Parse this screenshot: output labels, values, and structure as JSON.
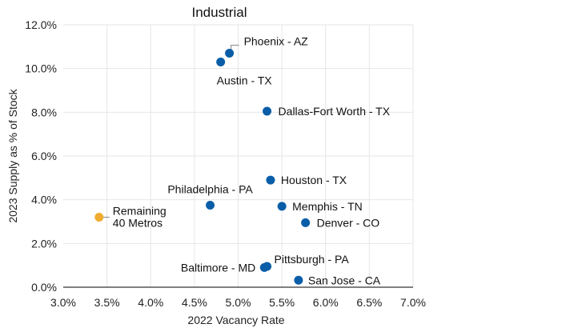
{
  "chart_data": {
    "type": "scatter",
    "title": "Industrial",
    "xlabel": "2022 Vacancy Rate",
    "ylabel": "2023 Supply as % of Stock",
    "xlim": [
      3.0,
      7.0
    ],
    "ylim": [
      0.0,
      12.0
    ],
    "x_ticks": [
      "3.0%",
      "3.5%",
      "4.0%",
      "4.5%",
      "5.0%",
      "5.5%",
      "6.0%",
      "6.5%",
      "7.0%"
    ],
    "y_ticks": [
      "0.0%",
      "2.0%",
      "4.0%",
      "6.0%",
      "8.0%",
      "10.0%",
      "12.0%"
    ],
    "grid": true,
    "colors": {
      "metro": "#0a5ea8",
      "remaining": "#f0ac2e"
    },
    "points": [
      {
        "label": "Phoenix - AZ",
        "x": 4.9,
        "y": 10.7,
        "color": "metro"
      },
      {
        "label": "Austin - TX",
        "x": 4.8,
        "y": 10.3,
        "color": "metro"
      },
      {
        "label": "Dallas-Fort Worth - TX",
        "x": 5.33,
        "y": 8.05,
        "color": "metro"
      },
      {
        "label": "Houston - TX",
        "x": 5.37,
        "y": 4.9,
        "color": "metro"
      },
      {
        "label": "Philadelphia - PA",
        "x": 4.68,
        "y": 3.75,
        "color": "metro"
      },
      {
        "label": "Memphis - TN",
        "x": 5.5,
        "y": 3.7,
        "color": "metro"
      },
      {
        "label": "Denver - CO",
        "x": 5.77,
        "y": 2.95,
        "color": "metro"
      },
      {
        "label": "Pittsburgh - PA",
        "x": 5.33,
        "y": 0.95,
        "color": "metro"
      },
      {
        "label": "Baltimore - MD",
        "x": 5.3,
        "y": 0.9,
        "color": "metro"
      },
      {
        "label": "San Jose - CA",
        "x": 5.69,
        "y": 0.32,
        "color": "metro"
      },
      {
        "label": "Remaining 40 Metros",
        "label_lines": [
          "Remaining",
          "40 Metros"
        ],
        "x": 3.41,
        "y": 3.2,
        "color": "remaining"
      }
    ]
  }
}
